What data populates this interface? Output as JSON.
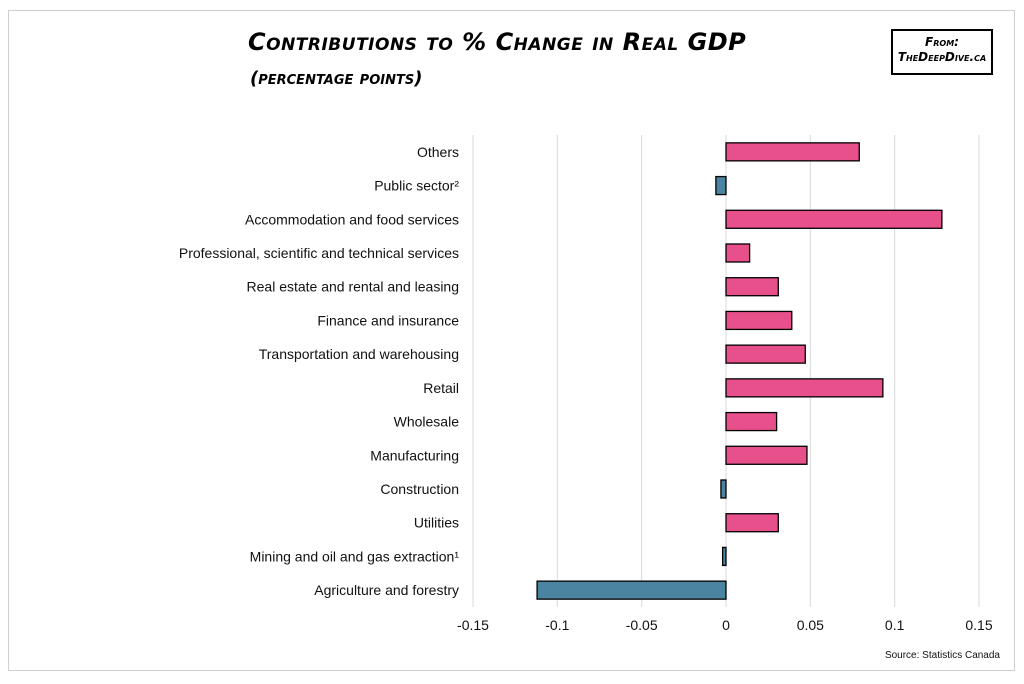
{
  "title": "Contributions to % Change in Real GDP",
  "subtitle": "(percentage points)",
  "badge": {
    "line1": "From:",
    "line2": "TheDeepDive.ca"
  },
  "source": "Source: Statistics Canada",
  "colors": {
    "positive": "#e7508a",
    "negative": "#4a84a0",
    "grid": "#d9d9d9",
    "bar_stroke": "#000000"
  },
  "chart_data": {
    "type": "bar",
    "orientation": "horizontal",
    "title": "Contributions to % Change in Real GDP",
    "subtitle": "(percentage points)",
    "xlim": [
      -0.15,
      0.15
    ],
    "xticks": [
      "-0.15",
      "-0.1",
      "-0.05",
      "0",
      "0.05",
      "0.1",
      "0.15"
    ],
    "grid": "vertical",
    "categories": [
      "Others",
      "Public sector²",
      "Accommodation and food services",
      "Professional, scientific and technical services",
      "Real estate and rental and leasing",
      "Finance and insurance",
      "Transportation and warehousing",
      "Retail",
      "Wholesale",
      "Manufacturing",
      "Construction",
      "Utilities",
      "Mining and oil and gas extraction¹",
      "Agriculture and forestry"
    ],
    "values": [
      0.079,
      -0.006,
      0.128,
      0.014,
      0.031,
      0.039,
      0.047,
      0.093,
      0.03,
      0.048,
      -0.003,
      0.031,
      -0.002,
      -0.112
    ]
  }
}
